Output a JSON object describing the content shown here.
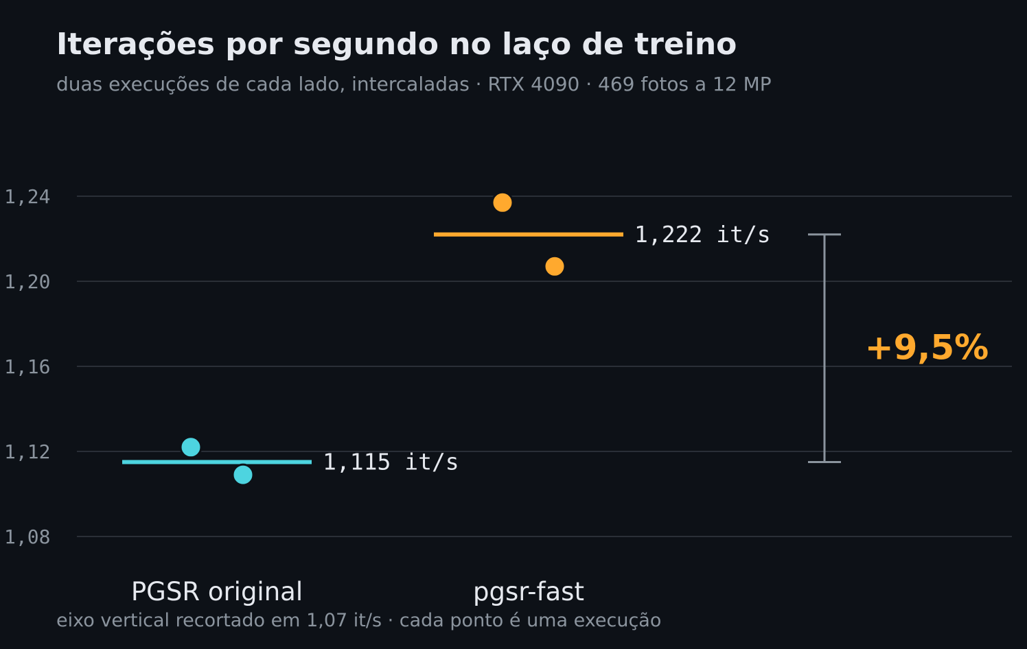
{
  "title": "Iterações por segundo no laço de treino",
  "subtitle": "duas execuções de cada lado, intercaladas · RTX 4090 · 469 fotos a 12 MP",
  "footnote": "eixo vertical recortado em 1,07 it/s · cada ponto é uma execução",
  "colors": {
    "background": "#0d1117",
    "original": "#4dd4e0",
    "fast": "#ffa92e",
    "grid": "#2a2f37",
    "bracket": "#8b949e",
    "text": "#e6e9ef",
    "muted": "#8b949e"
  },
  "chart_data": {
    "type": "scatter",
    "ylim": [
      1.07,
      1.27
    ],
    "yticks": [
      1.08,
      1.12,
      1.16,
      1.2,
      1.24
    ],
    "ytick_labels": [
      "1,08",
      "1,12",
      "1,16",
      "1,20",
      "1,24"
    ],
    "grid": true,
    "categories": [
      "PGSR original",
      "pgsr-fast"
    ],
    "series": [
      {
        "category": "PGSR original",
        "runs": [
          1.122,
          1.109
        ],
        "mean": 1.115,
        "mean_label": "1,115 it/s",
        "color": "#4dd4e0"
      },
      {
        "category": "pgsr-fast",
        "runs": [
          1.237,
          1.207
        ],
        "mean": 1.222,
        "mean_label": "1,222 it/s",
        "color": "#ffa92e"
      }
    ],
    "annotation": {
      "type": "bracket",
      "from": 1.115,
      "to": 1.222,
      "label": "+9,5%",
      "color": "#ffa92e"
    }
  }
}
